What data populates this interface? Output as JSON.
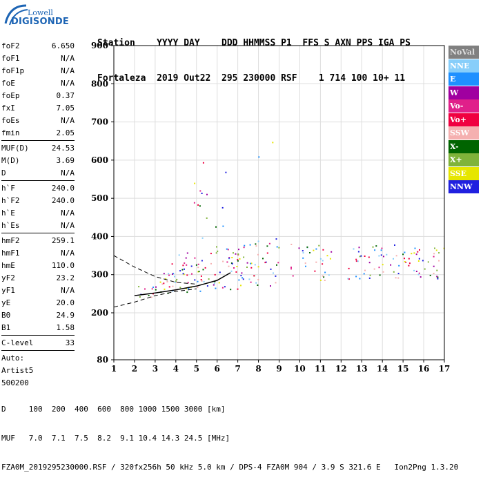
{
  "brand": {
    "line1": "Lowell",
    "line2": "DIGISONDE"
  },
  "header": {
    "line1": "Station    YYYY DAY    DDD HHMMSS P1  FFS S AXN PPS IGA PS",
    "line2": "Fortaleza  2019 Out22  295 230000 RSF    1 714 100 10+ 11"
  },
  "params": [
    {
      "k": "foF2",
      "v": "6.650"
    },
    {
      "k": "foF1",
      "v": "N/A"
    },
    {
      "k": "foF1p",
      "v": "N/A"
    },
    {
      "k": "foE",
      "v": "N/A"
    },
    {
      "k": "foEp",
      "v": "0.37"
    },
    {
      "k": "fxI",
      "v": "7.05"
    },
    {
      "k": "foEs",
      "v": "N/A"
    },
    {
      "k": "fmin",
      "v": "2.05"
    },
    {
      "sep": true
    },
    {
      "k": "MUF(D)",
      "v": "24.53"
    },
    {
      "k": "M(D)",
      "v": "3.69"
    },
    {
      "k": "D",
      "v": "N/A"
    },
    {
      "sep": true
    },
    {
      "k": "h`F",
      "v": "240.0"
    },
    {
      "k": "h`F2",
      "v": "240.0"
    },
    {
      "k": "h`E",
      "v": "N/A"
    },
    {
      "k": "h`Es",
      "v": "N/A"
    },
    {
      "sep": true
    },
    {
      "k": "hmF2",
      "v": "259.1"
    },
    {
      "k": "hmF1",
      "v": "N/A"
    },
    {
      "k": "hmE",
      "v": "110.0"
    },
    {
      "k": "yF2",
      "v": "23.2"
    },
    {
      "k": "yF1",
      "v": "N/A"
    },
    {
      "k": "yE",
      "v": "20.0"
    },
    {
      "k": "B0",
      "v": "24.9"
    },
    {
      "k": "B1",
      "v": "1.58"
    },
    {
      "sep": true
    },
    {
      "k": "C-level",
      "v": "33"
    },
    {
      "sep": true
    },
    {
      "k": "Auto:",
      "v": ""
    },
    {
      "k": "Artist5",
      "v": ""
    },
    {
      "k": "500200",
      "v": ""
    }
  ],
  "footer": {
    "d_row": "D     100  200  400  600  800 1000 1500 3000 [km]",
    "muf_row": "MUF   7.0  7.1  7.5  8.2  9.1 10.4 14.3 24.5 [MHz]",
    "file_row": "FZA0M_2019295230000.RSF / 320fx256h 50 kHz 5.0 km / DPS-4 FZA0M 904 / 3.9 S 321.6 E   Ion2Png 1.3.20"
  },
  "legend": [
    {
      "label": "NoVal",
      "color": "#808080"
    },
    {
      "label": "NNE",
      "color": "#87cefa"
    },
    {
      "label": "E",
      "color": "#1e90ff"
    },
    {
      "label": "W",
      "color": "#a000a0"
    },
    {
      "label": "Vo-",
      "color": "#e0208a"
    },
    {
      "label": "Vo+",
      "color": "#f00040"
    },
    {
      "label": "SSW",
      "color": "#f5b0b0"
    },
    {
      "label": "X-",
      "color": "#006400"
    },
    {
      "label": "X+",
      "color": "#7fb33a"
    },
    {
      "label": "SSE",
      "color": "#e6e600"
    },
    {
      "label": "NNW",
      "color": "#2020e0"
    }
  ],
  "chart_data": {
    "type": "scatter",
    "x_ticks": [
      "1",
      "2",
      "3",
      "4",
      "5",
      "6",
      "7",
      "8",
      "9",
      "10",
      "11",
      "12",
      "13",
      "14",
      "15",
      "16",
      "17"
    ],
    "y_ticks": [
      "80",
      "200",
      "300",
      "400",
      "500",
      "600",
      "700",
      "800",
      "900"
    ],
    "xlim": [
      1,
      17
    ],
    "ylim": [
      80,
      900
    ],
    "grid": true,
    "legend_position": "right",
    "series": [
      {
        "name": "NNE",
        "color": "#87cefa"
      },
      {
        "name": "E",
        "color": "#1e90ff"
      },
      {
        "name": "W",
        "color": "#a000a0"
      },
      {
        "name": "Vo-",
        "color": "#e0208a"
      },
      {
        "name": "Vo+",
        "color": "#f00040"
      },
      {
        "name": "SSW",
        "color": "#f5b0b0"
      },
      {
        "name": "X-",
        "color": "#006400"
      },
      {
        "name": "X+",
        "color": "#7fb33a"
      },
      {
        "name": "SSE",
        "color": "#e6e600"
      },
      {
        "name": "NNW",
        "color": "#2020e0"
      }
    ],
    "echo_regions": [
      {
        "f": [
          2.0,
          3.0
        ],
        "h": [
          235,
          275
        ],
        "density": 0.7
      },
      {
        "f": [
          3.0,
          4.0
        ],
        "h": [
          245,
          330
        ],
        "density": 0.75
      },
      {
        "f": [
          4.0,
          5.5
        ],
        "h": [
          255,
          360
        ],
        "density": 0.7
      },
      {
        "f": [
          5.5,
          7.0
        ],
        "h": [
          260,
          380
        ],
        "density": 0.6
      },
      {
        "f": [
          7.0,
          9.0
        ],
        "h": [
          270,
          400
        ],
        "density": 0.5
      },
      {
        "f": [
          9.5,
          11.5
        ],
        "h": [
          285,
          385
        ],
        "density": 0.45
      },
      {
        "f": [
          12.3,
          17.0
        ],
        "h": [
          290,
          380
        ],
        "density": 0.55
      },
      {
        "f": [
          4.8,
          6.5
        ],
        "h": [
          380,
          620
        ],
        "density": 0.1
      },
      {
        "f": [
          7.5,
          9.0
        ],
        "h": [
          600,
          650
        ],
        "density": 0.08
      }
    ],
    "profile_curve": [
      [
        2.0,
        245
      ],
      [
        3.0,
        252
      ],
      [
        4.0,
        260
      ],
      [
        5.0,
        270
      ],
      [
        6.0,
        285
      ],
      [
        6.65,
        305
      ]
    ],
    "dashed_curves": [
      [
        [
          1.0,
          350
        ],
        [
          2.0,
          320
        ],
        [
          3.0,
          295
        ],
        [
          4.0,
          280
        ],
        [
          5.0,
          275
        ]
      ],
      [
        [
          1.0,
          215
        ],
        [
          2.0,
          228
        ],
        [
          3.0,
          245
        ],
        [
          4.0,
          256
        ],
        [
          5.0,
          263
        ]
      ]
    ]
  }
}
